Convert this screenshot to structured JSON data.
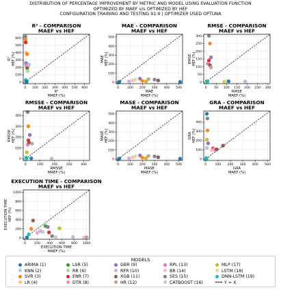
{
  "figure": {
    "suptitle": [
      "DISTRIBUTION OF PERCENTAGE IMPROVEMENT BY METRIC AND MODEL USING EVALUATION FUNCTION",
      "OPTIMIZED BY MAEF v/s OPTIMIZED BY HEF",
      "CONFIGURATION TRAINING AND TESTING 91:9 | OPTIMIZER USED OPTUNA"
    ]
  },
  "legend": {
    "title": "MODELS",
    "items": [
      {
        "label": "ARIMA (1)",
        "color": "#1f77b4"
      },
      {
        "label": "KNN (2)",
        "color": "#aec7e8"
      },
      {
        "label": "SVR (3)",
        "color": "#ff7f0e"
      },
      {
        "label": "LR (4)",
        "color": "#ffbb78"
      },
      {
        "label": "LSR (5)",
        "color": "#2ca02c"
      },
      {
        "label": "RR (6)",
        "color": "#98df8a"
      },
      {
        "label": "ENR (7)",
        "color": "#d62728"
      },
      {
        "label": "DTR (8)",
        "color": "#ff9896"
      },
      {
        "label": "GBR (9)",
        "color": "#9467bd"
      },
      {
        "label": "RFR (10)",
        "color": "#c5b0d5"
      },
      {
        "label": "XGB (11)",
        "color": "#8c564b"
      },
      {
        "label": "HR (12)",
        "color": "#c49c94"
      },
      {
        "label": "RPL (13)",
        "color": "#e377c2"
      },
      {
        "label": "BR (14)",
        "color": "#f7b6d2"
      },
      {
        "label": "SES (15)",
        "color": "#7f7f7f"
      },
      {
        "label": "CATBOOST (16)",
        "color": "#c7c7c7"
      },
      {
        "label": "MLP (17)",
        "color": "#bcbd22"
      },
      {
        "label": "LSTM (18)",
        "color": "#dbdb8d"
      },
      {
        "label": "DNN-LSTM (19)",
        "color": "#17becf"
      }
    ],
    "reference_line": "Y = X"
  },
  "chart_data": [
    {
      "type": "scatter",
      "title": "R² - COMPARISON",
      "subtitle": "MAEF vs HEF",
      "xlabel": "R²\nMAEF (%)",
      "ylabel": "R²\nHEF (%)",
      "xlim": [
        -20,
        650
      ],
      "ylim": [
        -20,
        650
      ],
      "xticks": [
        0,
        100,
        200,
        300,
        400,
        500,
        600
      ],
      "yticks": [
        0,
        100,
        200,
        300,
        400,
        500,
        600
      ],
      "points": [
        {
          "x": 2,
          "y": 620,
          "c": "#7f7f7f"
        },
        {
          "x": 3,
          "y": 580,
          "c": "#ff7f0e"
        },
        {
          "x": 5,
          "y": 540,
          "c": "#d62728"
        },
        {
          "x": 10,
          "y": 400,
          "c": "#ffbb78"
        },
        {
          "x": 20,
          "y": 380,
          "c": "#ff7f0e"
        },
        {
          "x": 8,
          "y": 260,
          "c": "#9467bd"
        },
        {
          "x": 10,
          "y": 230,
          "c": "#e377c2"
        },
        {
          "x": 15,
          "y": 210,
          "c": "#bcbd22"
        },
        {
          "x": 30,
          "y": 220,
          "c": "#c5b0d5"
        },
        {
          "x": 20,
          "y": 190,
          "c": "#8c564b"
        },
        {
          "x": 25,
          "y": 150,
          "c": "#98df8a"
        },
        {
          "x": 40,
          "y": 240,
          "c": "#aec7e8"
        },
        {
          "x": 5,
          "y": 30,
          "c": "#17becf"
        },
        {
          "x": 10,
          "y": 10,
          "c": "#2ca02c"
        },
        {
          "x": 15,
          "y": 5,
          "c": "#1f77b4"
        }
      ]
    },
    {
      "type": "scatter",
      "title": "MAE - COMPARISON",
      "subtitle": "MAEF vs HEF",
      "xlabel": "MAE\nMAEF (%)",
      "ylabel": "MAE\nHEF (%)",
      "xlim": [
        -15,
        530
      ],
      "ylim": [
        -15,
        530
      ],
      "xticks": [
        0,
        100,
        200,
        300,
        400,
        500
      ],
      "yticks": [
        0,
        100,
        200,
        300,
        400,
        500
      ],
      "points": [
        {
          "x": 5,
          "y": 2,
          "c": "#2ca02c"
        },
        {
          "x": 8,
          "y": 3,
          "c": "#17becf"
        },
        {
          "x": 10,
          "y": 5,
          "c": "#1f77b4"
        },
        {
          "x": 90,
          "y": 10,
          "c": "#c5b0d5"
        },
        {
          "x": 120,
          "y": 20,
          "c": "#f7b6d2"
        },
        {
          "x": 140,
          "y": 30,
          "c": "#dbdb8d"
        },
        {
          "x": 180,
          "y": 40,
          "c": "#9467bd"
        },
        {
          "x": 200,
          "y": 15,
          "c": "#ff7f0e"
        },
        {
          "x": 230,
          "y": 10,
          "c": "#bcbd22"
        },
        {
          "x": 300,
          "y": 30,
          "c": "#7f7f7f"
        },
        {
          "x": 330,
          "y": 20,
          "c": "#8c564b"
        },
        {
          "x": 250,
          "y": 35,
          "c": "#c49c94"
        },
        {
          "x": 510,
          "y": 5,
          "c": "#1f77b4"
        }
      ]
    },
    {
      "type": "scatter",
      "title": "RMSE - COMPARISON",
      "subtitle": "MAEF vs HEF",
      "xlabel": "RMSE\nMAEF (%)",
      "ylabel": "RMSE\nHEF (%)",
      "xlim": [
        -10,
        310
      ],
      "ylim": [
        -10,
        310
      ],
      "xticks": [
        0,
        50,
        100,
        150,
        200,
        250,
        300
      ],
      "yticks": [
        0,
        50,
        100,
        150,
        200,
        250,
        300
      ],
      "points": [
        {
          "x": 15,
          "y": 300,
          "c": "#7f7f7f"
        },
        {
          "x": 20,
          "y": 250,
          "c": "#ff7f0e"
        },
        {
          "x": 25,
          "y": 160,
          "c": "#9467bd"
        },
        {
          "x": 15,
          "y": 140,
          "c": "#d62728"
        },
        {
          "x": 10,
          "y": 120,
          "c": "#e377c2"
        },
        {
          "x": 20,
          "y": 110,
          "c": "#8c564b"
        },
        {
          "x": 25,
          "y": 95,
          "c": "#c49c94"
        },
        {
          "x": 5,
          "y": 5,
          "c": "#2ca02c"
        },
        {
          "x": 8,
          "y": 3,
          "c": "#17becf"
        },
        {
          "x": 90,
          "y": 3,
          "c": "#bcbd22"
        },
        {
          "x": 95,
          "y": 4,
          "c": "#dbdb8d"
        },
        {
          "x": 110,
          "y": 5,
          "c": "#1f77b4"
        },
        {
          "x": 190,
          "y": 4,
          "c": "#c5b0d5"
        }
      ]
    },
    {
      "type": "scatter",
      "title": "RMSSE - COMPARISON",
      "subtitle": "MAEF vs HEF",
      "xlabel": "RMSSE\nMAEF (%)",
      "ylabel": "RMSSE\nHEF (%)",
      "xlim": [
        -15,
        440
      ],
      "ylim": [
        -15,
        440
      ],
      "xticks": [
        0,
        100,
        200,
        300,
        400
      ],
      "yticks": [
        0,
        100,
        200,
        300,
        400
      ],
      "points": [
        {
          "x": 15,
          "y": 430,
          "c": "#7f7f7f"
        },
        {
          "x": 20,
          "y": 300,
          "c": "#ff7f0e"
        },
        {
          "x": 30,
          "y": 220,
          "c": "#9467bd"
        },
        {
          "x": 20,
          "y": 170,
          "c": "#d62728"
        },
        {
          "x": 15,
          "y": 130,
          "c": "#e377c2"
        },
        {
          "x": 25,
          "y": 150,
          "c": "#8c564b"
        },
        {
          "x": 45,
          "y": 140,
          "c": "#c49c94"
        },
        {
          "x": 10,
          "y": 60,
          "c": "#bcbd22"
        },
        {
          "x": 5,
          "y": 10,
          "c": "#2ca02c"
        },
        {
          "x": 8,
          "y": 5,
          "c": "#17becf"
        },
        {
          "x": 40,
          "y": 5,
          "c": "#1f77b4"
        },
        {
          "x": 180,
          "y": 3,
          "c": "#c5b0d5"
        }
      ]
    },
    {
      "type": "scatter",
      "title": "MASE - COMPARISON",
      "subtitle": "MAEF vs HEF",
      "xlabel": "MASE\nMAEF (%)",
      "ylabel": "MASE\nHEF (%)",
      "xlim": [
        -15,
        530
      ],
      "ylim": [
        -15,
        530
      ],
      "xticks": [
        0,
        100,
        200,
        300,
        400,
        500
      ],
      "yticks": [
        0,
        100,
        200,
        300,
        400,
        500
      ],
      "points": [
        {
          "x": 5,
          "y": 2,
          "c": "#2ca02c"
        },
        {
          "x": 8,
          "y": 3,
          "c": "#17becf"
        },
        {
          "x": 10,
          "y": 5,
          "c": "#1f77b4"
        },
        {
          "x": 90,
          "y": 10,
          "c": "#c5b0d5"
        },
        {
          "x": 120,
          "y": 20,
          "c": "#f7b6d2"
        },
        {
          "x": 140,
          "y": 30,
          "c": "#dbdb8d"
        },
        {
          "x": 180,
          "y": 40,
          "c": "#9467bd"
        },
        {
          "x": 200,
          "y": 15,
          "c": "#ff7f0e"
        },
        {
          "x": 230,
          "y": 10,
          "c": "#bcbd22"
        },
        {
          "x": 300,
          "y": 30,
          "c": "#7f7f7f"
        },
        {
          "x": 330,
          "y": 20,
          "c": "#8c564b"
        },
        {
          "x": 250,
          "y": 35,
          "c": "#c49c94"
        },
        {
          "x": 510,
          "y": 5,
          "c": "#1f77b4"
        }
      ]
    },
    {
      "type": "scatter",
      "title": "GRA - COMPARISON",
      "subtitle": "MAEF vs HEF",
      "xlabel": "GRA\nMAEF (%)",
      "ylabel": "GRA\nHEF (%)",
      "xlim": [
        -15,
        520
      ],
      "ylim": [
        -15,
        520
      ],
      "xticks": [
        0,
        100,
        200,
        300,
        400,
        500
      ],
      "yticks": [
        0,
        100,
        200,
        300,
        400
      ],
      "points": [
        {
          "x": 10,
          "y": 490,
          "c": "#1f77b4"
        },
        {
          "x": 15,
          "y": 440,
          "c": "#7f7f7f"
        },
        {
          "x": 15,
          "y": 310,
          "c": "#ff7f0e"
        },
        {
          "x": 10,
          "y": 210,
          "c": "#bcbd22"
        },
        {
          "x": 20,
          "y": 170,
          "c": "#9467bd"
        },
        {
          "x": 10,
          "y": 120,
          "c": "#c5b0d5"
        },
        {
          "x": 60,
          "y": 115,
          "c": "#d62728"
        },
        {
          "x": 70,
          "y": 110,
          "c": "#ff9896"
        },
        {
          "x": 80,
          "y": 100,
          "c": "#e377c2"
        },
        {
          "x": 90,
          "y": 105,
          "c": "#8c564b"
        },
        {
          "x": 140,
          "y": 145,
          "c": "#8c564b"
        },
        {
          "x": 50,
          "y": 95,
          "c": "#f7b6d2"
        },
        {
          "x": 5,
          "y": 10,
          "c": "#2ca02c"
        },
        {
          "x": 8,
          "y": 5,
          "c": "#17becf"
        }
      ]
    },
    {
      "type": "scatter",
      "title": "EXECUTION TIME - COMPARISON",
      "subtitle": "MAEF vs HEF",
      "xlabel": "EXECUTION TIME\nMAEF (%)",
      "ylabel": "EXECUTION TIME\nHEF (%)",
      "xlim": [
        -30,
        1050
      ],
      "ylim": [
        -30,
        1050
      ],
      "xticks": [
        0,
        200,
        400,
        600,
        800,
        1000
      ],
      "yticks": [
        0,
        200,
        400,
        600,
        800,
        1000
      ],
      "points": [
        {
          "x": 60,
          "y": 80,
          "c": "#17becf"
        },
        {
          "x": 100,
          "y": 200,
          "c": "#ff7f0e"
        },
        {
          "x": 130,
          "y": 380,
          "c": "#8c564b"
        },
        {
          "x": 200,
          "y": 110,
          "c": "#c5b0d5"
        },
        {
          "x": 250,
          "y": 150,
          "c": "#ff9896"
        },
        {
          "x": 290,
          "y": 130,
          "c": "#aec7e8"
        },
        {
          "x": 330,
          "y": 260,
          "c": "#2ca02c"
        },
        {
          "x": 370,
          "y": 240,
          "c": "#9467bd"
        },
        {
          "x": 390,
          "y": 120,
          "c": "#d62728"
        },
        {
          "x": 440,
          "y": 40,
          "c": "#7f7f7f"
        },
        {
          "x": 500,
          "y": 20,
          "c": "#c7c7c7"
        },
        {
          "x": 560,
          "y": 210,
          "c": "#bcbd22"
        },
        {
          "x": 780,
          "y": 20,
          "c": "#c5b0d5"
        },
        {
          "x": 960,
          "y": 10,
          "c": "#f7b6d2"
        },
        {
          "x": 1000,
          "y": 15,
          "c": "#c49c94"
        },
        {
          "x": 30,
          "y": 10,
          "c": "#1f77b4"
        }
      ]
    }
  ]
}
